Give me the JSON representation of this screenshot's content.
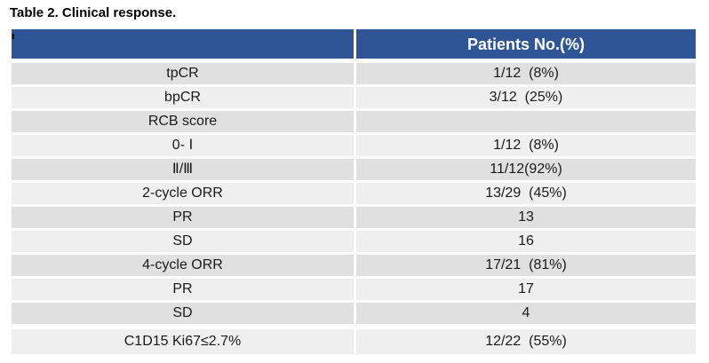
{
  "title": "Table 2. Clinical response.",
  "colors": {
    "header_bg": "#2F5597",
    "header_text": "#FFFFFF",
    "row_shade_a": "#E0E0E0",
    "row_shade_b": "#EFEFEF",
    "text": "#1A1A1A"
  },
  "table": {
    "header": {
      "col1": "",
      "col2": "Patients No.(%)"
    },
    "rows": [
      {
        "label": "tpCR",
        "value": "1/12  (8%)"
      },
      {
        "label": "bpCR",
        "value": "3/12  (25%)"
      },
      {
        "label": "RCB score",
        "value": ""
      },
      {
        "label": "0- Ⅰ",
        "value": "1/12  (8%)"
      },
      {
        "label": "Ⅱ/Ⅲ",
        "value": "11/12(92%)"
      },
      {
        "label": "2-cycle ORR",
        "value": "13/29  (45%)"
      },
      {
        "label": "PR",
        "value": "13"
      },
      {
        "label": "SD",
        "value": "16"
      },
      {
        "label": "4-cycle ORR",
        "value": "17/21  (81%)"
      },
      {
        "label": "PR",
        "value": "17"
      },
      {
        "label": "SD",
        "value": "4"
      },
      {
        "label": "C1D15 Ki67≤2.7%",
        "value": "12/22  (55%)"
      }
    ]
  }
}
